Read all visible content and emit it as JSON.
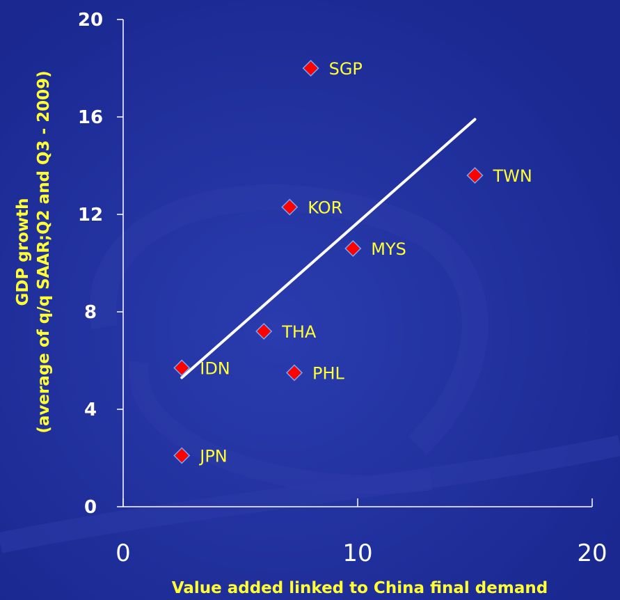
{
  "chart_data": {
    "type": "scatter",
    "title": "",
    "xlabel": "Value added linked to China final demand",
    "ylabel_line1": "GDP growth",
    "ylabel_line2": "(average of q/q SAAR;Q2 and Q3 - 2009)",
    "xlim": [
      0,
      20
    ],
    "ylim": [
      0,
      20
    ],
    "x_ticks": [
      0,
      10,
      20
    ],
    "y_ticks": [
      0,
      4,
      8,
      12,
      16,
      20
    ],
    "grid": false,
    "legend": "none",
    "points": [
      {
        "label": "SGP",
        "x": 8.0,
        "y": 18.0
      },
      {
        "label": "TWN",
        "x": 15.0,
        "y": 13.6
      },
      {
        "label": "KOR",
        "x": 7.1,
        "y": 12.3
      },
      {
        "label": "MYS",
        "x": 9.8,
        "y": 10.6
      },
      {
        "label": "THA",
        "x": 6.0,
        "y": 7.2
      },
      {
        "label": "IDN",
        "x": 2.5,
        "y": 5.7
      },
      {
        "label": "PHL",
        "x": 7.3,
        "y": 5.5
      },
      {
        "label": "JPN",
        "x": 2.5,
        "y": 2.1
      }
    ],
    "trendline": {
      "x": [
        2.5,
        15.0
      ],
      "y": [
        5.3,
        15.9
      ]
    },
    "colors": {
      "background": "#1f2f9a",
      "marker": "#ff0000",
      "marker_edge": "#6fa8ff",
      "label": "#ffff33",
      "axis": "#ffffff",
      "trendline": "#ffffff"
    }
  }
}
